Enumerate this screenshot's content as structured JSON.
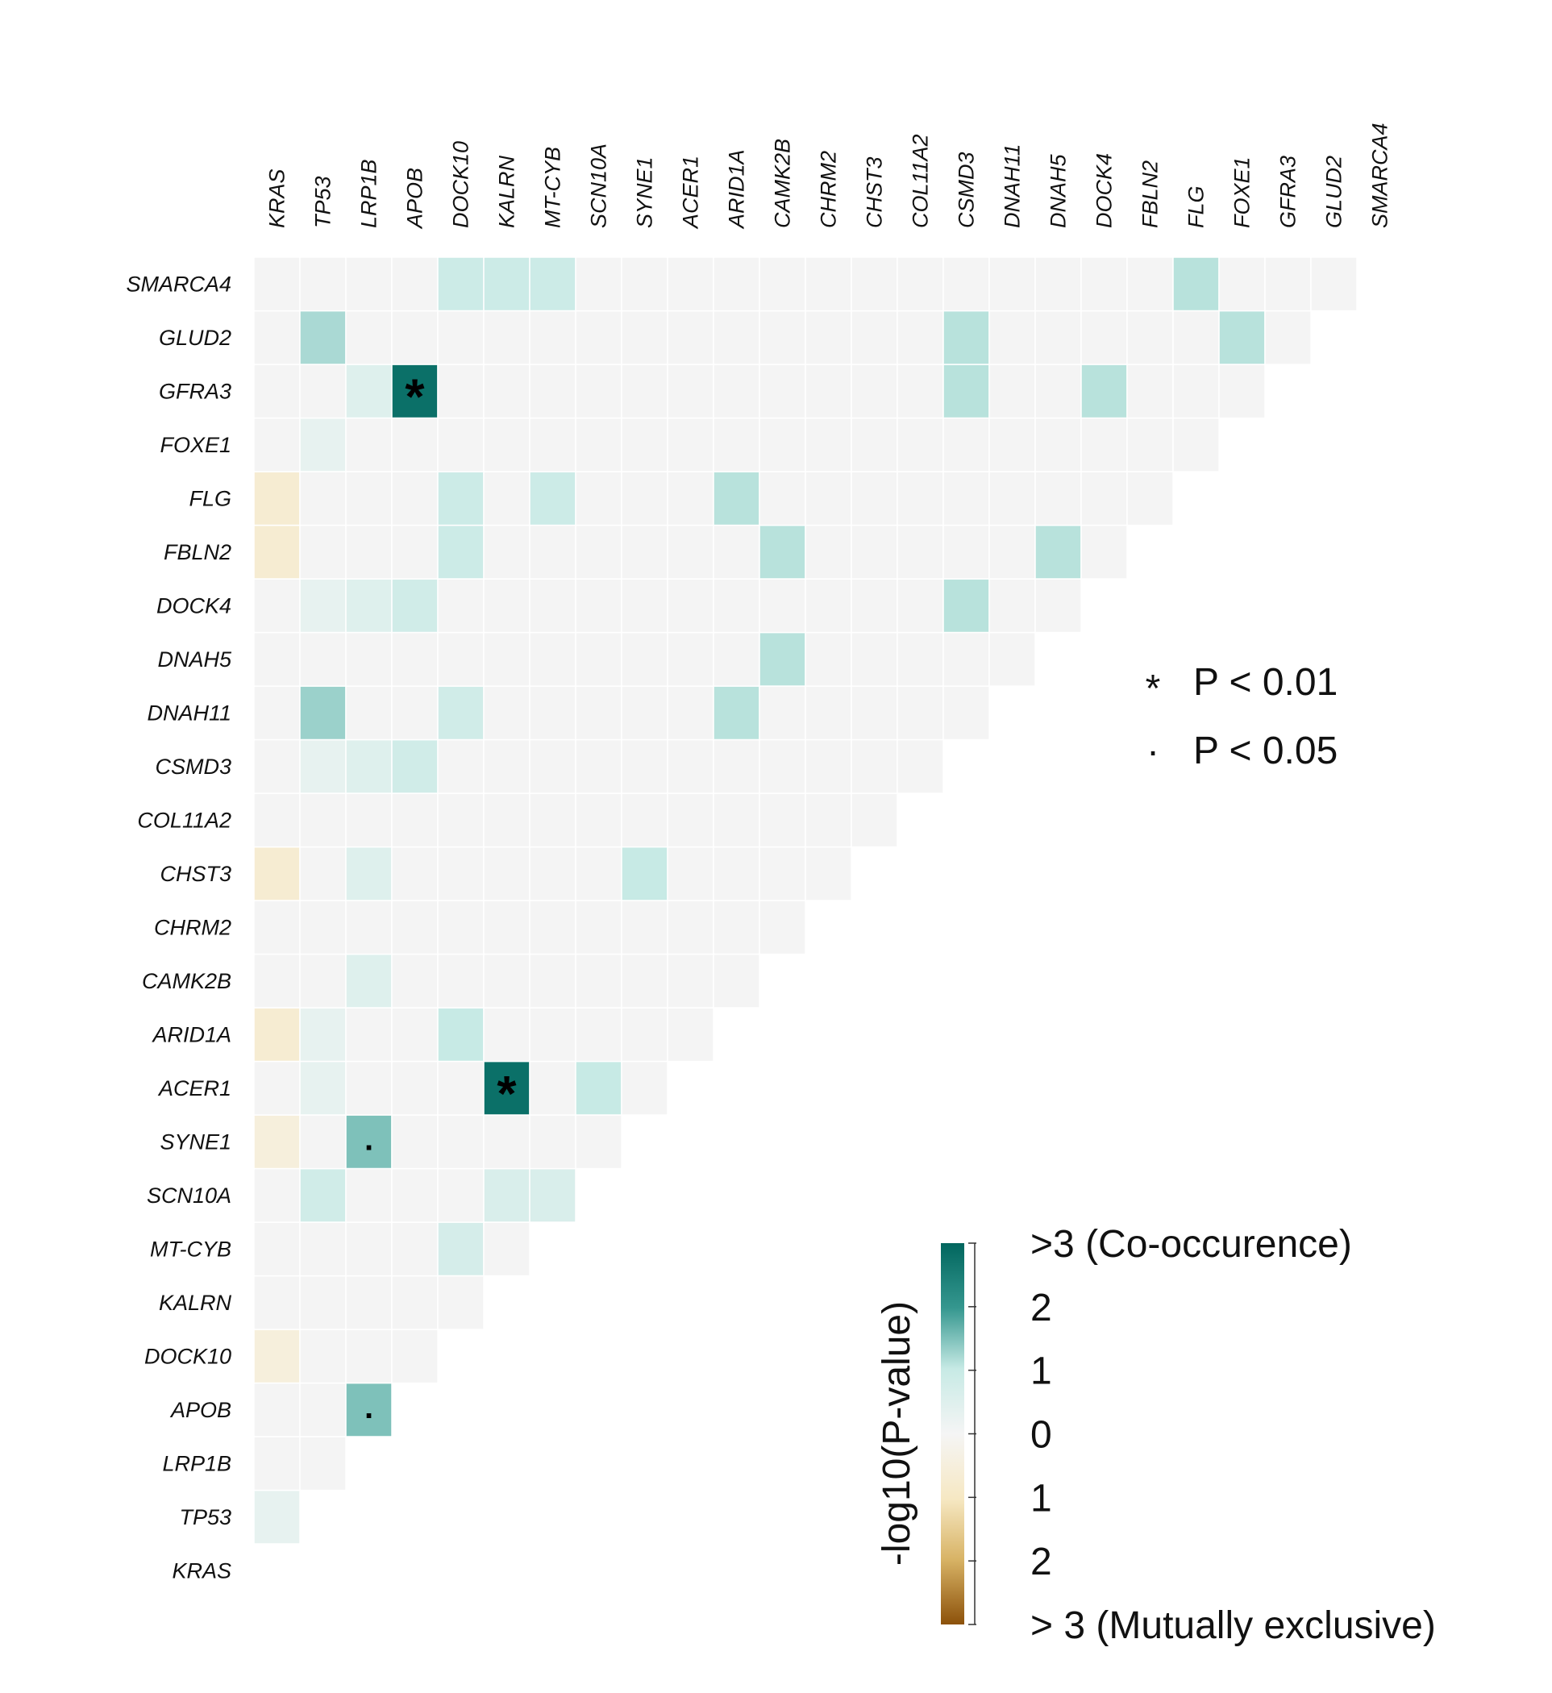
{
  "chart_data": {
    "type": "heatmap",
    "genes": [
      "KRAS",
      "TP53",
      "LRP1B",
      "APOB",
      "DOCK10",
      "KALRN",
      "MT-CYB",
      "SCN10A",
      "SYNE1",
      "ACER1",
      "ARID1A",
      "CAMK2B",
      "CHRM2",
      "CHST3",
      "COL11A2",
      "CSMD3",
      "DNAH11",
      "DNAH5",
      "DOCK4",
      "FBLN2",
      "FLG",
      "FOXE1",
      "GFRA3",
      "GLUD2",
      "SMARCA4"
    ],
    "value_scale": "-log10(P-value); positive = co-occurrence, negative = mutual exclusivity",
    "cells": [
      {
        "row": "TP53",
        "col": "KRAS",
        "value": 0.3
      },
      {
        "row": "APOB",
        "col": "LRP1B",
        "value": 1.5,
        "sig": "."
      },
      {
        "row": "DOCK10",
        "col": "KRAS",
        "value": -0.5
      },
      {
        "row": "MT-CYB",
        "col": "DOCK10",
        "value": 0.7
      },
      {
        "row": "SCN10A",
        "col": "TP53",
        "value": 0.8
      },
      {
        "row": "SCN10A",
        "col": "KALRN",
        "value": 0.6
      },
      {
        "row": "SCN10A",
        "col": "MT-CYB",
        "value": 0.6
      },
      {
        "row": "SYNE1",
        "col": "KRAS",
        "value": -0.5
      },
      {
        "row": "SYNE1",
        "col": "LRP1B",
        "value": 1.5,
        "sig": "."
      },
      {
        "row": "ACER1",
        "col": "TP53",
        "value": 0.3
      },
      {
        "row": "ACER1",
        "col": "KALRN",
        "value": 2.8,
        "sig": "*"
      },
      {
        "row": "ACER1",
        "col": "SCN10A",
        "value": 1.0
      },
      {
        "row": "ARID1A",
        "col": "KRAS",
        "value": -0.7
      },
      {
        "row": "ARID1A",
        "col": "TP53",
        "value": 0.3
      },
      {
        "row": "ARID1A",
        "col": "DOCK10",
        "value": 1.0
      },
      {
        "row": "CAMK2B",
        "col": "LRP1B",
        "value": 0.5
      },
      {
        "row": "CHST3",
        "col": "KRAS",
        "value": -0.7
      },
      {
        "row": "CHST3",
        "col": "LRP1B",
        "value": 0.5
      },
      {
        "row": "CHST3",
        "col": "SYNE1",
        "value": 1.0
      },
      {
        "row": "CSMD3",
        "col": "TP53",
        "value": 0.3
      },
      {
        "row": "CSMD3",
        "col": "LRP1B",
        "value": 0.5
      },
      {
        "row": "CSMD3",
        "col": "APOB",
        "value": 0.8
      },
      {
        "row": "DNAH11",
        "col": "TP53",
        "value": 1.3
      },
      {
        "row": "DNAH11",
        "col": "DOCK10",
        "value": 0.8
      },
      {
        "row": "DNAH11",
        "col": "ARID1A",
        "value": 1.1
      },
      {
        "row": "DNAH5",
        "col": "CAMK2B",
        "value": 1.1
      },
      {
        "row": "DOCK4",
        "col": "TP53",
        "value": 0.3
      },
      {
        "row": "DOCK4",
        "col": "LRP1B",
        "value": 0.5
      },
      {
        "row": "DOCK4",
        "col": "APOB",
        "value": 0.8
      },
      {
        "row": "DOCK4",
        "col": "CSMD3",
        "value": 1.1
      },
      {
        "row": "FBLN2",
        "col": "KRAS",
        "value": -0.7
      },
      {
        "row": "FBLN2",
        "col": "DOCK10",
        "value": 0.9
      },
      {
        "row": "FBLN2",
        "col": "CAMK2B",
        "value": 1.1
      },
      {
        "row": "FBLN2",
        "col": "DNAH5",
        "value": 1.1
      },
      {
        "row": "FLG",
        "col": "KRAS",
        "value": -0.7
      },
      {
        "row": "FLG",
        "col": "DOCK10",
        "value": 0.9
      },
      {
        "row": "FLG",
        "col": "MT-CYB",
        "value": 0.9
      },
      {
        "row": "FLG",
        "col": "ARID1A",
        "value": 1.1
      },
      {
        "row": "FOXE1",
        "col": "TP53",
        "value": 0.3
      },
      {
        "row": "GFRA3",
        "col": "LRP1B",
        "value": 0.5
      },
      {
        "row": "GFRA3",
        "col": "APOB",
        "value": 2.8,
        "sig": "*"
      },
      {
        "row": "GFRA3",
        "col": "CSMD3",
        "value": 1.1
      },
      {
        "row": "GFRA3",
        "col": "DOCK4",
        "value": 1.1
      },
      {
        "row": "GLUD2",
        "col": "TP53",
        "value": 1.2
      },
      {
        "row": "GLUD2",
        "col": "CSMD3",
        "value": 1.1
      },
      {
        "row": "GLUD2",
        "col": "FOXE1",
        "value": 1.1
      },
      {
        "row": "SMARCA4",
        "col": "DOCK10",
        "value": 0.9
      },
      {
        "row": "SMARCA4",
        "col": "KALRN",
        "value": 0.9
      },
      {
        "row": "SMARCA4",
        "col": "MT-CYB",
        "value": 0.9
      },
      {
        "row": "SMARCA4",
        "col": "FLG",
        "value": 1.1
      }
    ],
    "colors": {
      "neutral": "#f4f4f4",
      "co_occurrence_high": "#01665e",
      "co_occurrence_mid": "#35978f",
      "co_occurrence_low": "#c7eae5",
      "mutual_exclusive_high": "#8c510a",
      "mutual_exclusive_mid": "#d8b365",
      "mutual_exclusive_low": "#f6e8c3",
      "center": "#f5f5f5"
    },
    "significance_legend": [
      {
        "symbol": "*",
        "label": "P < 0.01"
      },
      {
        "symbol": ".",
        "label": "P < 0.05"
      }
    ],
    "colorbar": {
      "title": "-log10(P-value)",
      "range": [
        -3,
        3
      ],
      "tick_labels": [
        ">3 (Co-occurence)",
        "2",
        "1",
        "0",
        "1",
        "2",
        "> 3 (Mutually exclusive)"
      ]
    }
  }
}
